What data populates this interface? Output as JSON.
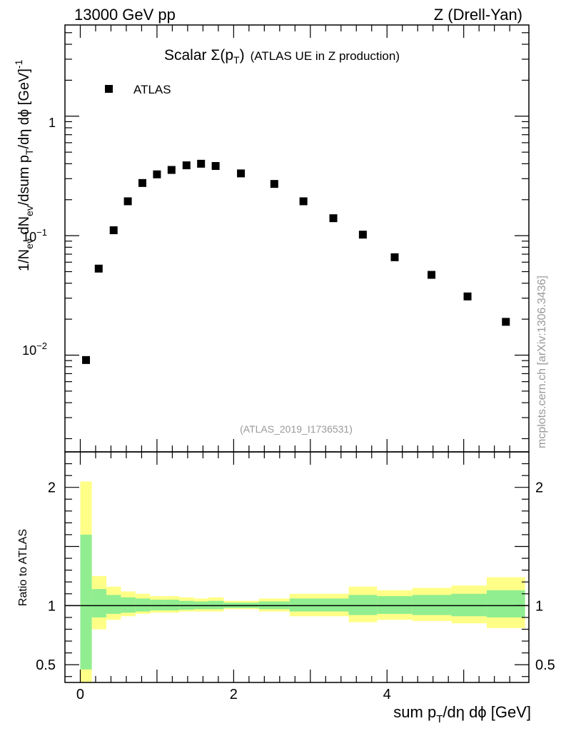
{
  "header": {
    "energy_label": "13000 GeV pp",
    "process_label": "Z (Drell-Yan)"
  },
  "side_label": "mcplots.cern.ch [arXiv:1306.3436]",
  "chart_data": [
    {
      "type": "scatter",
      "panel": "main",
      "title": "Scalar Σ(p_T) (ATLAS UE in Z production)",
      "title_main": "Scalar ",
      "title_sigma": "Σ(p",
      "title_sub": "T",
      "title_close": ")",
      "title_rest": "(ATLAS UE in Z production)",
      "analysis_id": "(ATLAS_2019_I1736531)",
      "ylabel": "1/N_ev dN_ev/dsum p_T/dη dϕ [GeV]^-1",
      "ylabel_parts": {
        "a": "1/N",
        "a_sub": "ev",
        "b": " dN",
        "b_sub": "ev",
        "c": "/dsum p",
        "c_sub": "T",
        "d": "/dη dϕ  [GeV]",
        "d_sup": "-1"
      },
      "yscale": "log",
      "ylim": [
        0.00155,
        5.8
      ],
      "xlim": [
        -0.2,
        5.85
      ],
      "ytick_labels": {
        "one": "1",
        "tenth_base": "10",
        "tenth_exp": "−1",
        "hundredth_base": "10",
        "hundredth_exp": "−2"
      },
      "legend": {
        "position": "top-left",
        "entries": [
          "ATLAS"
        ]
      },
      "series": [
        {
          "name": "ATLAS",
          "x": [
            0.075,
            0.24,
            0.435,
            0.62,
            0.81,
            1.0,
            1.19,
            1.385,
            1.575,
            1.765,
            2.095,
            2.53,
            2.91,
            3.3,
            3.685,
            4.1,
            4.58,
            5.05,
            5.55
          ],
          "y": [
            0.0091,
            0.053,
            0.111,
            0.194,
            0.276,
            0.326,
            0.355,
            0.388,
            0.4,
            0.383,
            0.332,
            0.271,
            0.194,
            0.14,
            0.102,
            0.066,
            0.047,
            0.031,
            0.019
          ]
        }
      ]
    },
    {
      "type": "area",
      "panel": "ratio",
      "ylabel": "Ratio to ATLAS",
      "xlabel": "sum p_T/dη dϕ [GeV]",
      "xlabel_parts": {
        "a": "sum p",
        "a_sub": "T",
        "b": "/dη dϕ [GeV]"
      },
      "xlim": [
        -0.2,
        5.85
      ],
      "ylim": [
        0.35,
        2.3
      ],
      "yticks": [
        0.5,
        1,
        2
      ],
      "ytick_labels": [
        "0.5",
        "1",
        "2"
      ],
      "xticks": [
        0,
        2,
        4
      ],
      "xtick_labels": [
        "0",
        "2",
        "4"
      ],
      "reference_line": 1,
      "bin_edges": [
        0.0,
        0.15,
        0.34,
        0.53,
        0.72,
        0.91,
        1.1,
        1.29,
        1.48,
        1.67,
        1.87,
        2.33,
        2.73,
        3.1,
        3.5,
        3.87,
        4.33,
        4.84,
        5.3,
        5.8
      ],
      "bands": [
        {
          "name": "total uncertainty",
          "color": "#ffff88",
          "low": [
            0.35,
            0.8,
            0.88,
            0.91,
            0.93,
            0.94,
            0.94,
            0.95,
            0.95,
            0.95,
            0.97,
            0.95,
            0.91,
            0.91,
            0.86,
            0.88,
            0.87,
            0.85,
            0.81
          ],
          "high": [
            2.05,
            1.25,
            1.16,
            1.12,
            1.1,
            1.08,
            1.08,
            1.07,
            1.06,
            1.07,
            1.04,
            1.06,
            1.1,
            1.1,
            1.16,
            1.13,
            1.15,
            1.17,
            1.24
          ]
        },
        {
          "name": "stat uncertainty",
          "color": "#90ee90",
          "low": [
            0.46,
            0.9,
            0.93,
            0.94,
            0.95,
            0.96,
            0.96,
            0.965,
            0.97,
            0.97,
            0.98,
            0.97,
            0.95,
            0.95,
            0.92,
            0.93,
            0.92,
            0.91,
            0.9
          ],
          "high": [
            1.6,
            1.14,
            1.09,
            1.07,
            1.06,
            1.05,
            1.05,
            1.04,
            1.035,
            1.04,
            1.025,
            1.035,
            1.06,
            1.06,
            1.09,
            1.08,
            1.09,
            1.1,
            1.13
          ]
        }
      ],
      "colors": {
        "data": "#000000",
        "yellow": "#ffff88",
        "green": "#90ee90"
      }
    }
  ]
}
